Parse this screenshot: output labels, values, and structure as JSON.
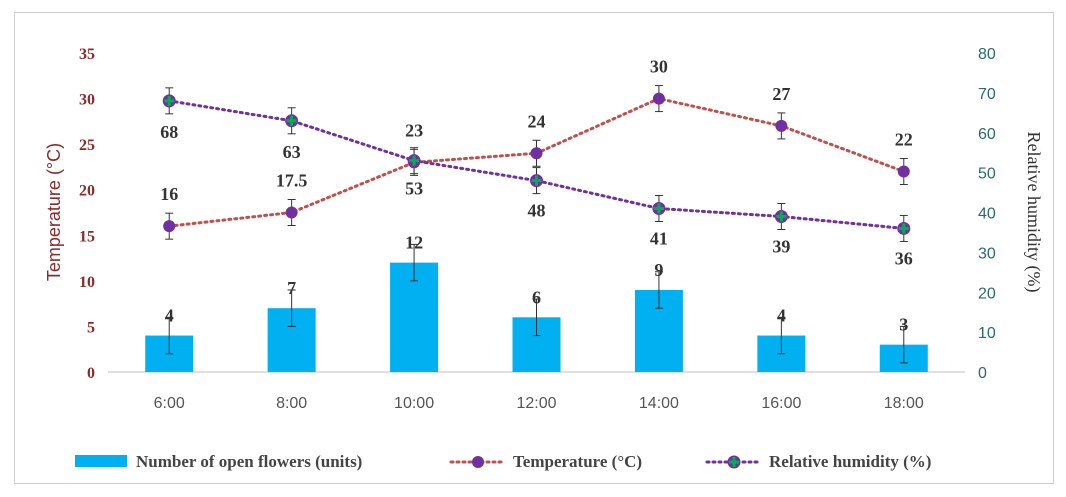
{
  "chart_data": {
    "type": "bar+line",
    "categories": [
      "6:00",
      "8:00",
      "10:00",
      "12:00",
      "14:00",
      "16:00",
      "18:00"
    ],
    "series": [
      {
        "name": "Number of open flowers (units)",
        "type": "bar",
        "axis": "left",
        "values": [
          4,
          7,
          12,
          6,
          9,
          4,
          3
        ],
        "labels": [
          "4",
          "7",
          "12",
          "6",
          "9",
          "4",
          "3"
        ],
        "color": "#00b0f0"
      },
      {
        "name": "Temperature (°C)",
        "type": "line",
        "axis": "left",
        "values": [
          16,
          17.5,
          23,
          24,
          30,
          27,
          22
        ],
        "labels": [
          "16",
          "17.5",
          "23",
          "24",
          "30",
          "27",
          "22"
        ],
        "color": "#c0504d",
        "marker_color": "#7030a0"
      },
      {
        "name": "Relative humidity (%)",
        "type": "line",
        "axis": "right",
        "values": [
          68,
          63,
          53,
          48,
          41,
          39,
          36
        ],
        "labels": [
          "68",
          "63",
          "53",
          "48",
          "41",
          "39",
          "36"
        ],
        "color": "#7030a0",
        "marker_color": "#00b050"
      }
    ],
    "ylabel": "Temperature (°C)",
    "y2label": "Relative humidity (%)",
    "ylim": [
      0,
      35
    ],
    "y2lim": [
      0,
      80
    ],
    "yticks": [
      "0",
      "5",
      "10",
      "15",
      "20",
      "25",
      "30",
      "35"
    ],
    "y2ticks": [
      "0",
      "10",
      "20",
      "30",
      "40",
      "50",
      "60",
      "70",
      "80"
    ],
    "grid": false,
    "error_bars": true,
    "legend_position": "bottom"
  }
}
